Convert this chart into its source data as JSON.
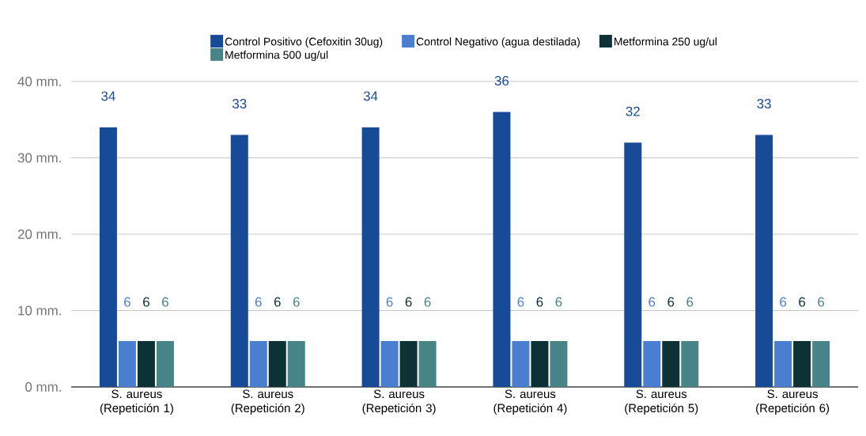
{
  "chart_data": {
    "type": "bar",
    "categories": [
      "S. aureus (Repetición 1)",
      "S. aureus (Repetición 2)",
      "S. aureus (Repetición 3)",
      "S. aureus (Repetición 4)",
      "S. aureus (Repetición 5)",
      "S. aureus (Repetición 6)"
    ],
    "series": [
      {
        "name": "Control Positivo (Cefoxitin 30ug)",
        "color": "#174a97",
        "values": [
          34,
          33,
          34,
          36,
          32,
          33
        ]
      },
      {
        "name": "Control Negativo (agua destilada)",
        "color": "#4a7ed0",
        "values": [
          6,
          6,
          6,
          6,
          6,
          6
        ]
      },
      {
        "name": "Metformina 250 ug/ul",
        "color": "#0c3236",
        "values": [
          6,
          6,
          6,
          6,
          6,
          6
        ]
      },
      {
        "name": "Metformina 500 ug/ul",
        "color": "#468488",
        "values": [
          6,
          6,
          6,
          6,
          6,
          6
        ]
      }
    ],
    "ylim": [
      0,
      40
    ],
    "yticks": [
      {
        "value": 0,
        "label": "0 mm."
      },
      {
        "value": 10,
        "label": "10 mm."
      },
      {
        "value": 20,
        "label": "20 mm."
      },
      {
        "value": 30,
        "label": "30 mm."
      },
      {
        "value": 40,
        "label": "40 mm."
      }
    ],
    "grid": "y",
    "legend": "top",
    "data_labels": true
  }
}
